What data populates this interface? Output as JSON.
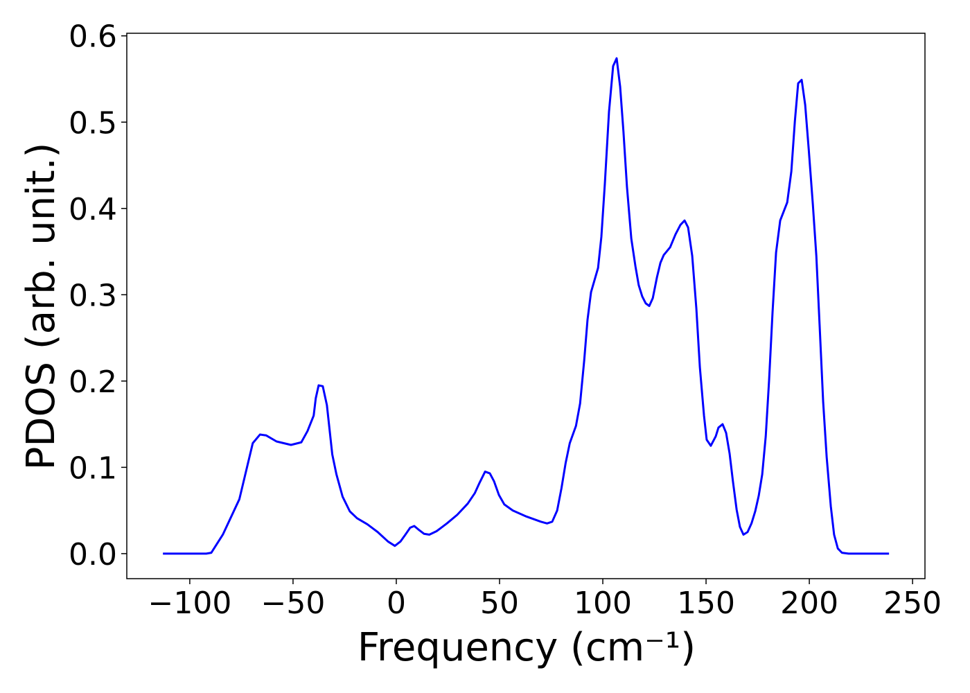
{
  "chart_data": {
    "type": "line",
    "xlabel": "Frequency (cm⁻¹)",
    "ylabel": "PDOS (arb. unit.)",
    "xlim": [
      -130.5,
      256
    ],
    "ylim": [
      -0.029,
      0.603
    ],
    "xticks": [
      {
        "value": -100,
        "label": "−100"
      },
      {
        "value": -50,
        "label": "−50"
      },
      0,
      50,
      100,
      150,
      200,
      250
    ],
    "yticks": [
      {
        "value": 0,
        "label": "0.0"
      },
      0.1,
      0.2,
      0.3,
      0.4,
      0.5,
      0.6
    ],
    "grid": false,
    "series": [
      {
        "color": "#0000ff",
        "x": [
          -113,
          -92,
          -89.6,
          -84,
          -76,
          -69.5,
          -66,
          -63,
          -58,
          -51,
          -46,
          -43,
          -40,
          -39,
          -37.6,
          -35.6,
          -33.6,
          -31,
          -29,
          -26,
          -22.5,
          -19,
          -14,
          -9,
          -4,
          -0.7,
          2,
          4.4,
          6.7,
          8.7,
          10.7,
          13.4,
          16,
          19.5,
          24.5,
          29.5,
          34.6,
          38,
          40.3,
          43,
          45.3,
          47.3,
          49.7,
          52.3,
          56.4,
          63,
          70,
          73,
          75.5,
          77.9,
          80,
          82,
          84,
          87,
          89,
          91,
          92.6,
          94.3,
          97.7,
          99.3,
          101,
          103,
          105,
          106.7,
          108.4,
          110,
          111.7,
          113.8,
          115.8,
          117.4,
          119.1,
          120.8,
          122.5,
          124.2,
          126.2,
          127.9,
          129.5,
          132.6,
          135.2,
          137.6,
          139.6,
          141.3,
          143.3,
          145.3,
          147,
          149,
          150.3,
          152.3,
          154.7,
          156,
          158,
          159.7,
          161.4,
          163,
          164.8,
          166.4,
          168.1,
          170.1,
          172,
          173.8,
          175.5,
          177.2,
          178.9,
          180.5,
          182.2,
          183.9,
          185.9,
          189.3,
          191.3,
          193,
          194.6,
          196.3,
          198,
          199.7,
          201.7,
          203.4,
          205,
          206.7,
          208.4,
          210.4,
          212,
          213.8,
          215.8,
          219,
          238.6
        ],
        "values": [
          0,
          0,
          0.001,
          0.022,
          0.063,
          0.128,
          0.138,
          0.137,
          0.13,
          0.126,
          0.129,
          0.142,
          0.16,
          0.18,
          0.195,
          0.194,
          0.172,
          0.115,
          0.092,
          0.066,
          0.049,
          0.041,
          0.034,
          0.025,
          0.014,
          0.009,
          0.014,
          0.022,
          0.03,
          0.032,
          0.028,
          0.023,
          0.022,
          0.026,
          0.035,
          0.045,
          0.058,
          0.07,
          0.082,
          0.095,
          0.093,
          0.084,
          0.068,
          0.057,
          0.05,
          0.043,
          0.037,
          0.035,
          0.037,
          0.05,
          0.076,
          0.105,
          0.128,
          0.148,
          0.174,
          0.224,
          0.271,
          0.303,
          0.331,
          0.367,
          0.429,
          0.512,
          0.565,
          0.574,
          0.541,
          0.489,
          0.425,
          0.365,
          0.333,
          0.311,
          0.298,
          0.29,
          0.287,
          0.296,
          0.32,
          0.337,
          0.346,
          0.355,
          0.37,
          0.381,
          0.386,
          0.378,
          0.345,
          0.284,
          0.216,
          0.16,
          0.132,
          0.125,
          0.136,
          0.146,
          0.15,
          0.14,
          0.116,
          0.084,
          0.051,
          0.031,
          0.022,
          0.025,
          0.035,
          0.049,
          0.067,
          0.092,
          0.136,
          0.2,
          0.28,
          0.349,
          0.386,
          0.407,
          0.443,
          0.501,
          0.545,
          0.549,
          0.52,
          0.469,
          0.405,
          0.345,
          0.264,
          0.176,
          0.112,
          0.055,
          0.022,
          0.006,
          0.001,
          0,
          0
        ]
      }
    ]
  }
}
